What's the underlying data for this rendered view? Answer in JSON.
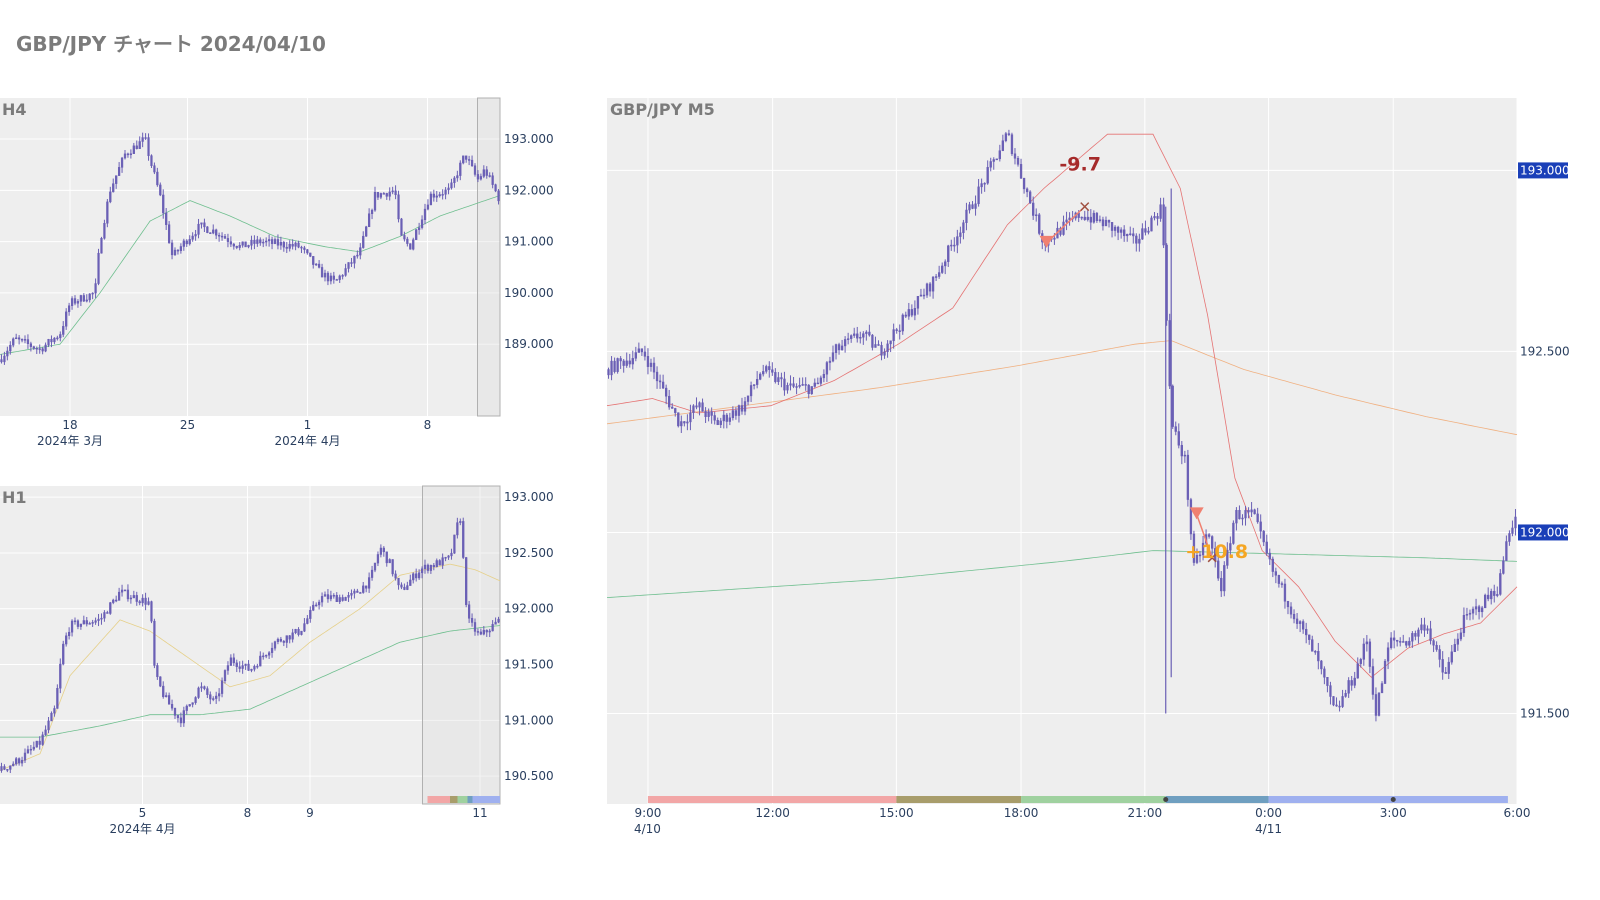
{
  "page": {
    "title": "GBP/JPY チャート 2024/04/10"
  },
  "colors": {
    "plot_bg": "#eeeeee",
    "grid": "#ffffff",
    "candle": "#6a5fb5",
    "ma_short": "#e57373",
    "ma_long": "#f0b080",
    "ma_green": "#6fbf8f",
    "ma_yellow": "#e6d08a",
    "price_badge": "#1a3fb8",
    "loss_label": "#a52a2a",
    "profit_label": "#f5a623",
    "sell_marker": "#f08070"
  },
  "chart_data": [
    {
      "id": "h4",
      "type": "candlestick",
      "title": "H4",
      "x_ticks": [
        {
          "pos": 0.14,
          "label": "18",
          "sublabel": "2024年 3月"
        },
        {
          "pos": 0.375,
          "label": "25",
          "sublabel": ""
        },
        {
          "pos": 0.615,
          "label": "1",
          "sublabel": "2024年 4月"
        },
        {
          "pos": 0.855,
          "label": "8",
          "sublabel": ""
        }
      ],
      "y_ticks": [
        "193.000",
        "192.000",
        "191.000",
        "190.000",
        "189.000"
      ],
      "ylim": [
        187.6,
        193.8
      ],
      "highlight_window": [
        0.955,
        1.0
      ],
      "close_anchors": [
        [
          0.0,
          188.7
        ],
        [
          0.03,
          189.1
        ],
        [
          0.08,
          188.9
        ],
        [
          0.12,
          189.2
        ],
        [
          0.14,
          189.8
        ],
        [
          0.19,
          190.0
        ],
        [
          0.2,
          191.0
        ],
        [
          0.22,
          192.0
        ],
        [
          0.25,
          192.7
        ],
        [
          0.29,
          193.0
        ],
        [
          0.3,
          192.6
        ],
        [
          0.32,
          191.9
        ],
        [
          0.345,
          190.7
        ],
        [
          0.37,
          191.0
        ],
        [
          0.4,
          191.3
        ],
        [
          0.43,
          191.2
        ],
        [
          0.48,
          190.9
        ],
        [
          0.52,
          191.0
        ],
        [
          0.6,
          190.9
        ],
        [
          0.64,
          190.4
        ],
        [
          0.67,
          190.2
        ],
        [
          0.72,
          190.8
        ],
        [
          0.75,
          191.9
        ],
        [
          0.79,
          192.0
        ],
        [
          0.8,
          191.1
        ],
        [
          0.82,
          190.9
        ],
        [
          0.86,
          191.9
        ],
        [
          0.9,
          192.0
        ],
        [
          0.93,
          192.7
        ],
        [
          0.955,
          192.2
        ],
        [
          0.97,
          192.4
        ],
        [
          1.0,
          191.8
        ]
      ],
      "ma_green_anchors": [
        [
          0.0,
          188.8
        ],
        [
          0.12,
          189.0
        ],
        [
          0.2,
          190.0
        ],
        [
          0.3,
          191.4
        ],
        [
          0.38,
          191.8
        ],
        [
          0.46,
          191.5
        ],
        [
          0.55,
          191.1
        ],
        [
          0.65,
          190.9
        ],
        [
          0.72,
          190.8
        ],
        [
          0.8,
          191.1
        ],
        [
          0.88,
          191.5
        ],
        [
          1.0,
          191.9
        ]
      ]
    },
    {
      "id": "h1",
      "type": "candlestick",
      "title": "H1",
      "x_ticks": [
        {
          "pos": 0.285,
          "label": "5",
          "sublabel": "2024年 4月"
        },
        {
          "pos": 0.495,
          "label": "8",
          "sublabel": ""
        },
        {
          "pos": 0.62,
          "label": "9",
          "sublabel": ""
        },
        {
          "pos": 0.96,
          "label": "11",
          "sublabel": ""
        }
      ],
      "y_ticks": [
        "193.000",
        "192.500",
        "192.000",
        "191.500",
        "191.000",
        "190.500"
      ],
      "ylim": [
        190.25,
        193.1
      ],
      "highlight_window": [
        0.845,
        1.0
      ],
      "session_bar": [
        {
          "from": 0.855,
          "to": 0.9,
          "color": "#f2a6a6"
        },
        {
          "from": 0.9,
          "to": 0.915,
          "color": "#a89d6b"
        },
        {
          "from": 0.915,
          "to": 0.935,
          "color": "#9fd19f"
        },
        {
          "from": 0.935,
          "to": 0.945,
          "color": "#6f9fc0"
        },
        {
          "from": 0.945,
          "to": 1.0,
          "color": "#9fb0ef"
        }
      ],
      "close_anchors": [
        [
          0.0,
          190.55
        ],
        [
          0.04,
          190.65
        ],
        [
          0.08,
          190.8
        ],
        [
          0.11,
          191.1
        ],
        [
          0.125,
          191.65
        ],
        [
          0.14,
          191.85
        ],
        [
          0.2,
          191.9
        ],
        [
          0.24,
          192.15
        ],
        [
          0.3,
          192.05
        ],
        [
          0.31,
          191.4
        ],
        [
          0.33,
          191.2
        ],
        [
          0.36,
          191.0
        ],
        [
          0.4,
          191.3
        ],
        [
          0.43,
          191.15
        ],
        [
          0.46,
          191.55
        ],
        [
          0.5,
          191.45
        ],
        [
          0.55,
          191.7
        ],
        [
          0.6,
          191.8
        ],
        [
          0.64,
          192.1
        ],
        [
          0.7,
          192.1
        ],
        [
          0.74,
          192.25
        ],
        [
          0.76,
          192.55
        ],
        [
          0.78,
          192.4
        ],
        [
          0.8,
          192.15
        ],
        [
          0.84,
          192.35
        ],
        [
          0.9,
          192.45
        ],
        [
          0.92,
          192.85
        ],
        [
          0.935,
          191.9
        ],
        [
          0.96,
          191.75
        ],
        [
          1.0,
          191.9
        ]
      ],
      "ma_yellow_anchors": [
        [
          0.0,
          190.55
        ],
        [
          0.08,
          190.7
        ],
        [
          0.14,
          191.4
        ],
        [
          0.24,
          191.9
        ],
        [
          0.3,
          191.8
        ],
        [
          0.38,
          191.55
        ],
        [
          0.46,
          191.3
        ],
        [
          0.54,
          191.4
        ],
        [
          0.62,
          191.7
        ],
        [
          0.72,
          192.0
        ],
        [
          0.8,
          192.3
        ],
        [
          0.9,
          192.4
        ],
        [
          0.95,
          192.35
        ],
        [
          1.0,
          192.25
        ]
      ],
      "ma_green_anchors": [
        [
          0.0,
          190.85
        ],
        [
          0.08,
          190.85
        ],
        [
          0.2,
          190.95
        ],
        [
          0.3,
          191.05
        ],
        [
          0.4,
          191.05
        ],
        [
          0.5,
          191.1
        ],
        [
          0.6,
          191.3
        ],
        [
          0.7,
          191.5
        ],
        [
          0.8,
          191.7
        ],
        [
          0.9,
          191.8
        ],
        [
          1.0,
          191.85
        ]
      ]
    },
    {
      "id": "m5",
      "type": "candlestick",
      "title": "GBP/JPY M5",
      "x_ticks": [
        {
          "pos": 0.045,
          "label": "9:00",
          "sublabel": "4/10"
        },
        {
          "pos": 0.182,
          "label": "12:00",
          "sublabel": ""
        },
        {
          "pos": 0.318,
          "label": "15:00",
          "sublabel": ""
        },
        {
          "pos": 0.455,
          "label": "18:00",
          "sublabel": ""
        },
        {
          "pos": 0.591,
          "label": "21:00",
          "sublabel": ""
        },
        {
          "pos": 0.727,
          "label": "0:00",
          "sublabel": "4/11"
        },
        {
          "pos": 0.864,
          "label": "3:00",
          "sublabel": ""
        },
        {
          "pos": 1.0,
          "label": "6:00",
          "sublabel": ""
        }
      ],
      "y_ticks": [
        "193.000",
        "192.500",
        "192.000",
        "191.500"
      ],
      "badge_ticks": [
        "193.000",
        "192.000"
      ],
      "ylim": [
        191.25,
        193.2
      ],
      "session_bar": [
        {
          "from": 0.045,
          "to": 0.318,
          "color": "#f2a6a6"
        },
        {
          "from": 0.318,
          "to": 0.455,
          "color": "#a89d6b"
        },
        {
          "from": 0.455,
          "to": 0.614,
          "color": "#9fd19f"
        },
        {
          "from": 0.614,
          "to": 0.727,
          "color": "#6f9fc0"
        },
        {
          "from": 0.727,
          "to": 0.99,
          "color": "#9fb0ef"
        }
      ],
      "session_dots": [
        0.614,
        0.864
      ],
      "close_anchors": [
        [
          0.0,
          192.45
        ],
        [
          0.04,
          192.5
        ],
        [
          0.06,
          192.4
        ],
        [
          0.08,
          192.3
        ],
        [
          0.1,
          192.35
        ],
        [
          0.12,
          192.3
        ],
        [
          0.15,
          192.35
        ],
        [
          0.17,
          192.45
        ],
        [
          0.2,
          192.4
        ],
        [
          0.23,
          192.4
        ],
        [
          0.25,
          192.5
        ],
        [
          0.28,
          192.55
        ],
        [
          0.3,
          192.5
        ],
        [
          0.33,
          192.6
        ],
        [
          0.36,
          192.7
        ],
        [
          0.4,
          192.9
        ],
        [
          0.44,
          193.1
        ],
        [
          0.48,
          192.8
        ],
        [
          0.52,
          192.88
        ],
        [
          0.55,
          192.85
        ],
        [
          0.58,
          192.8
        ],
        [
          0.61,
          192.9
        ],
        [
          0.62,
          192.3
        ],
        [
          0.635,
          192.2
        ],
        [
          0.645,
          191.9
        ],
        [
          0.66,
          192.0
        ],
        [
          0.675,
          191.85
        ],
        [
          0.69,
          192.05
        ],
        [
          0.71,
          192.05
        ],
        [
          0.73,
          191.9
        ],
        [
          0.76,
          191.75
        ],
        [
          0.78,
          191.65
        ],
        [
          0.8,
          191.5
        ],
        [
          0.82,
          191.6
        ],
        [
          0.835,
          191.7
        ],
        [
          0.845,
          191.5
        ],
        [
          0.86,
          191.7
        ],
        [
          0.88,
          191.7
        ],
        [
          0.9,
          191.75
        ],
        [
          0.92,
          191.6
        ],
        [
          0.94,
          191.75
        ],
        [
          0.96,
          191.8
        ],
        [
          0.98,
          191.85
        ],
        [
          0.99,
          192.0
        ],
        [
          1.0,
          192.05
        ]
      ],
      "spikes": [
        {
          "pos": 0.614,
          "high": 192.9,
          "low": 191.5
        },
        {
          "pos": 0.62,
          "high": 192.95,
          "low": 191.6
        }
      ],
      "ma_short_anchors": [
        [
          0.0,
          192.35
        ],
        [
          0.05,
          192.37
        ],
        [
          0.1,
          192.33
        ],
        [
          0.18,
          192.35
        ],
        [
          0.25,
          192.42
        ],
        [
          0.32,
          192.52
        ],
        [
          0.38,
          192.62
        ],
        [
          0.44,
          192.85
        ],
        [
          0.48,
          192.95
        ],
        [
          0.55,
          193.1
        ],
        [
          0.6,
          193.1
        ],
        [
          0.63,
          192.95
        ],
        [
          0.66,
          192.6
        ],
        [
          0.69,
          192.15
        ],
        [
          0.72,
          191.95
        ],
        [
          0.76,
          191.85
        ],
        [
          0.8,
          191.7
        ],
        [
          0.84,
          191.6
        ],
        [
          0.88,
          191.68
        ],
        [
          0.92,
          191.72
        ],
        [
          0.96,
          191.75
        ],
        [
          1.0,
          191.85
        ]
      ],
      "ma_long_anchors": [
        [
          0.0,
          192.3
        ],
        [
          0.15,
          192.35
        ],
        [
          0.3,
          192.4
        ],
        [
          0.45,
          192.46
        ],
        [
          0.58,
          192.52
        ],
        [
          0.62,
          192.53
        ],
        [
          0.7,
          192.45
        ],
        [
          0.8,
          192.38
        ],
        [
          0.9,
          192.32
        ],
        [
          1.0,
          192.27
        ]
      ],
      "ma_green_anchors": [
        [
          0.0,
          191.82
        ],
        [
          0.3,
          191.87
        ],
        [
          0.5,
          191.92
        ],
        [
          0.6,
          191.95
        ],
        [
          0.75,
          191.94
        ],
        [
          0.9,
          191.93
        ],
        [
          1.0,
          191.92
        ]
      ],
      "annotations": [
        {
          "name": "loss-trade-label",
          "text": "-9.7",
          "x": 0.52,
          "y": 193.0,
          "color_key": "loss_label"
        },
        {
          "name": "profit-trade-label",
          "text": "+10.8",
          "x": 0.67,
          "y": 191.93,
          "color_key": "profit_label"
        }
      ],
      "sell_markers": [
        {
          "x": 0.483,
          "y": 192.8
        },
        {
          "x": 0.648,
          "y": 192.05
        }
      ],
      "trade_lines": [
        {
          "x1": 0.483,
          "y1": 192.8,
          "x2": 0.525,
          "y2": 192.9,
          "color_key": "sell_marker"
        },
        {
          "x1": 0.648,
          "y1": 192.05,
          "x2": 0.665,
          "y2": 191.93,
          "color_key": "sell_marker"
        }
      ]
    }
  ]
}
